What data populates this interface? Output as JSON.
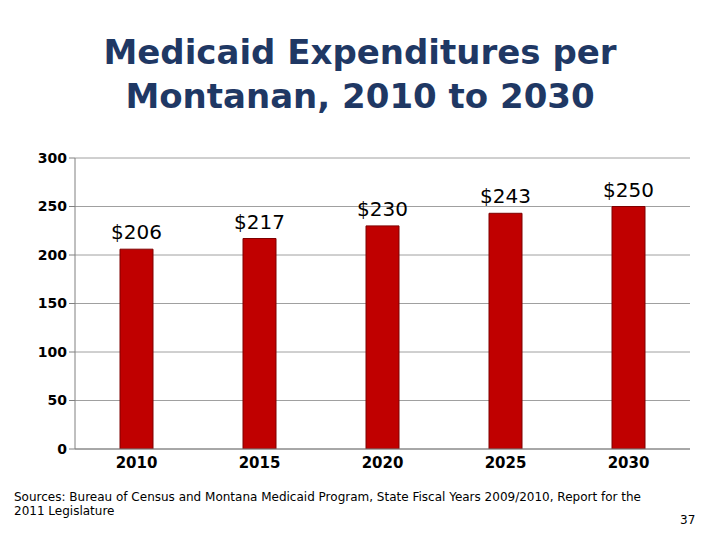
{
  "chart_data": {
    "type": "bar",
    "title": "Medicaid Expenditures per Montanan, 2010 to 2030",
    "categories": [
      "2010",
      "2015",
      "2020",
      "2025",
      "2030"
    ],
    "values": [
      206,
      217,
      230,
      243,
      250
    ],
    "value_labels": [
      "$206",
      "$217",
      "$230",
      "$243",
      "$250"
    ],
    "data_labels": true,
    "color": "#c00000",
    "ylim": [
      0,
      300
    ],
    "yticks": [
      0,
      50,
      100,
      150,
      200,
      250,
      300
    ],
    "grid": true,
    "annotations": [
      "Sources:  Bureau of Census and Montana Medicaid Program, State Fiscal Years 2009/2010, Report for the 2011 Legislature",
      "37"
    ]
  }
}
